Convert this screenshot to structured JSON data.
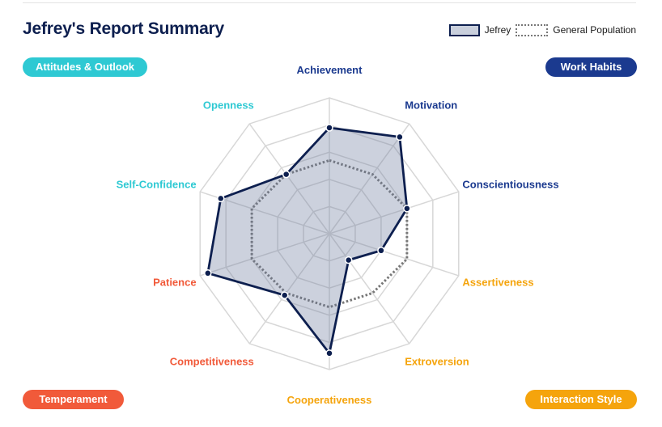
{
  "title": "Jefrey's Report Summary",
  "legend": {
    "subject_label": "Jefrey",
    "population_label": "General Population"
  },
  "categories": [
    {
      "label": "Attitudes & Outlook",
      "color": "#2ec9d3"
    },
    {
      "label": "Work Habits",
      "color": "#1b3a8f"
    },
    {
      "label": "Temperament",
      "color": "#f15a3a"
    },
    {
      "label": "Interaction Style",
      "color": "#f5a40c"
    }
  ],
  "chart_data": {
    "type": "radar",
    "title": "Jefrey's Report Summary",
    "axes": [
      {
        "label": "Achievement",
        "group": "Work Habits",
        "color": "#1b3a8f"
      },
      {
        "label": "Motivation",
        "group": "Work Habits",
        "color": "#1b3a8f"
      },
      {
        "label": "Conscientiousness",
        "group": "Work Habits",
        "color": "#1b3a8f"
      },
      {
        "label": "Assertiveness",
        "group": "Interaction Style",
        "color": "#f5a40c"
      },
      {
        "label": "Extroversion",
        "group": "Interaction Style",
        "color": "#f5a40c"
      },
      {
        "label": "Cooperativeness",
        "group": "Interaction Style",
        "color": "#f5a40c"
      },
      {
        "label": "Competitiveness",
        "group": "Temperament",
        "color": "#f15a3a"
      },
      {
        "label": "Patience",
        "group": "Temperament",
        "color": "#f15a3a"
      },
      {
        "label": "Self-Confidence",
        "group": "Attitudes & Outlook",
        "color": "#2ec9d3"
      },
      {
        "label": "Openness",
        "group": "Attitudes & Outlook",
        "color": "#2ec9d3"
      }
    ],
    "range": [
      0,
      5
    ],
    "rings": 5,
    "series": [
      {
        "name": "Jefrey",
        "values": [
          3.9,
          4.4,
          3.0,
          2.0,
          1.2,
          4.4,
          2.8,
          4.7,
          4.2,
          2.7
        ]
      },
      {
        "name": "General Population",
        "values": [
          2.7,
          2.7,
          3.0,
          3.0,
          2.7,
          2.7,
          2.7,
          3.0,
          3.0,
          2.7
        ]
      }
    ],
    "grid": true
  }
}
